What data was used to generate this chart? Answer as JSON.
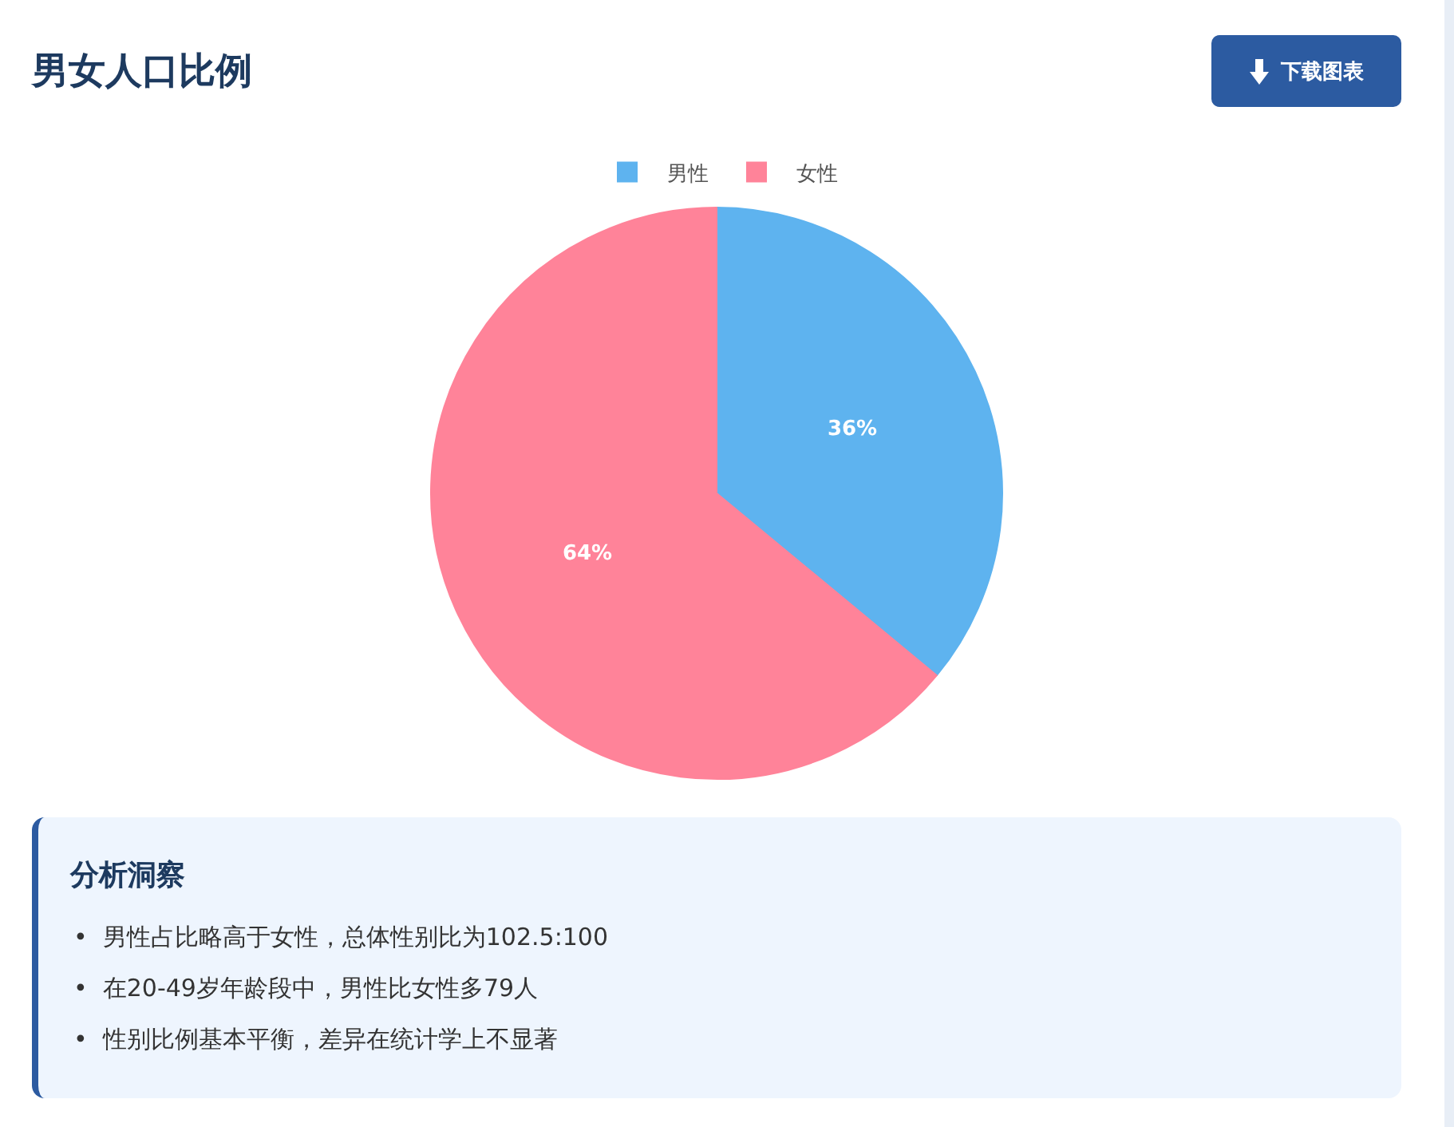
{
  "chart_data": {
    "type": "pie",
    "title": "男女人口比例",
    "categories": [
      "男性",
      "女性"
    ],
    "values": [
      36,
      64
    ],
    "value_labels": [
      "36%",
      "64%"
    ],
    "colors": [
      "#5eb3ef",
      "#ff8399"
    ],
    "legend": "top",
    "annotations": [
      "下载图表",
      "分析洞察",
      "•  男性占比略高于女性，总体性别比为102.5:100",
      "•  在20-49岁年龄段中，男性比女性多79人",
      "•  性别比例基本平衡，差异在统计学上不显著"
    ]
  }
}
